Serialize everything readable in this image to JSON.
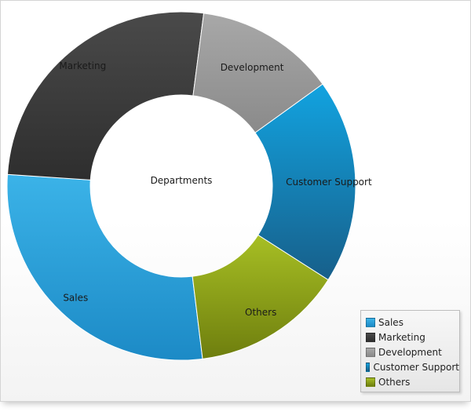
{
  "chart_data": {
    "type": "pie",
    "variant": "donut",
    "center_label": "Departments",
    "categories": [
      "Sales",
      "Marketing",
      "Development",
      "Customer Support",
      "Others"
    ],
    "values": [
      28,
      26,
      13,
      19,
      14
    ],
    "colors": [
      "#2a9fd6",
      "#3d3d3d",
      "#9a9a9a",
      "#1a86c4",
      "#8fa520"
    ],
    "legend_position": "bottom-right"
  },
  "legend": {
    "items": [
      {
        "label": "Sales",
        "color": "#2a9fd6"
      },
      {
        "label": "Marketing",
        "color": "#3d3d3d"
      },
      {
        "label": "Development",
        "color": "#9a9a9a"
      },
      {
        "label": "Customer Support",
        "color": "#1a86c4"
      },
      {
        "label": "Others",
        "color": "#8fa520"
      }
    ]
  }
}
